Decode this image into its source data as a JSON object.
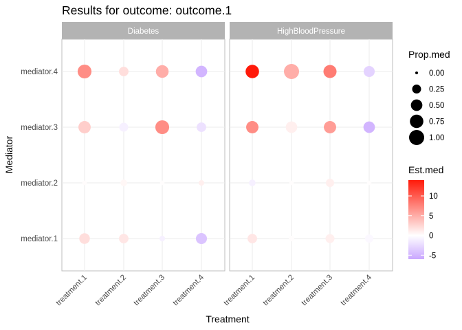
{
  "chart_data": {
    "type": "scatter",
    "title": "Results for outcome: outcome.1",
    "xlabel": "Treatment",
    "ylabel": "Mediator",
    "facets": [
      "Diabetes",
      "HighBloodPressure"
    ],
    "x_categories": [
      "treatment.1",
      "treatment.2",
      "treatment.3",
      "treatment.4"
    ],
    "y_categories": [
      "mediator.1",
      "mediator.2",
      "mediator.3",
      "mediator.4"
    ],
    "grid": true,
    "size_legend": {
      "title": "Prop.med",
      "breaks": [
        0.0,
        0.25,
        0.5,
        0.75,
        1.0
      ],
      "labels": [
        "0.00",
        "0.25",
        "0.50",
        "0.75",
        "1.00"
      ]
    },
    "color_legend": {
      "title": "Est.med",
      "limits": [
        -6,
        14
      ],
      "breaks": [
        10,
        5,
        0,
        -5
      ],
      "labels": [
        "10",
        "5",
        "0",
        "-5"
      ],
      "low_color": "#c9a6ff",
      "mid_color": "#ffffff",
      "high_color": "#ff1a0a"
    },
    "points": [
      {
        "facet": "Diabetes",
        "x": "treatment.1",
        "y": "mediator.4",
        "prop": 0.8,
        "est": 7
      },
      {
        "facet": "Diabetes",
        "x": "treatment.2",
        "y": "mediator.4",
        "prop": 0.3,
        "est": 2
      },
      {
        "facet": "Diabetes",
        "x": "treatment.3",
        "y": "mediator.4",
        "prop": 0.65,
        "est": 5
      },
      {
        "facet": "Diabetes",
        "x": "treatment.4",
        "y": "mediator.4",
        "prop": 0.5,
        "est": -5
      },
      {
        "facet": "Diabetes",
        "x": "treatment.1",
        "y": "mediator.3",
        "prop": 0.6,
        "est": 3
      },
      {
        "facet": "Diabetes",
        "x": "treatment.2",
        "y": "mediator.3",
        "prop": 0.25,
        "est": -1
      },
      {
        "facet": "Diabetes",
        "x": "treatment.3",
        "y": "mediator.3",
        "prop": 0.8,
        "est": 7
      },
      {
        "facet": "Diabetes",
        "x": "treatment.4",
        "y": "mediator.3",
        "prop": 0.3,
        "est": -2
      },
      {
        "facet": "Diabetes",
        "x": "treatment.1",
        "y": "mediator.2",
        "prop": 0.02,
        "est": 0.2
      },
      {
        "facet": "Diabetes",
        "x": "treatment.2",
        "y": "mediator.2",
        "prop": 0.1,
        "est": 0.5
      },
      {
        "facet": "Diabetes",
        "x": "treatment.3",
        "y": "mediator.2",
        "prop": 0.02,
        "est": 0.1
      },
      {
        "facet": "Diabetes",
        "x": "treatment.4",
        "y": "mediator.2",
        "prop": 0.05,
        "est": 1
      },
      {
        "facet": "Diabetes",
        "x": "treatment.1",
        "y": "mediator.1",
        "prop": 0.4,
        "est": 2
      },
      {
        "facet": "Diabetes",
        "x": "treatment.2",
        "y": "mediator.1",
        "prop": 0.3,
        "est": 1.5
      },
      {
        "facet": "Diabetes",
        "x": "treatment.3",
        "y": "mediator.1",
        "prop": 0.05,
        "est": -1
      },
      {
        "facet": "Diabetes",
        "x": "treatment.4",
        "y": "mediator.1",
        "prop": 0.45,
        "est": -4
      },
      {
        "facet": "HighBloodPressure",
        "x": "treatment.1",
        "y": "mediator.4",
        "prop": 0.75,
        "est": 14
      },
      {
        "facet": "HighBloodPressure",
        "x": "treatment.2",
        "y": "mediator.4",
        "prop": 1.0,
        "est": 5
      },
      {
        "facet": "HighBloodPressure",
        "x": "treatment.3",
        "y": "mediator.4",
        "prop": 0.7,
        "est": 8
      },
      {
        "facet": "HighBloodPressure",
        "x": "treatment.4",
        "y": "mediator.4",
        "prop": 0.45,
        "est": -3
      },
      {
        "facet": "HighBloodPressure",
        "x": "treatment.1",
        "y": "mediator.3",
        "prop": 0.6,
        "est": 7
      },
      {
        "facet": "HighBloodPressure",
        "x": "treatment.2",
        "y": "mediator.3",
        "prop": 0.5,
        "est": 1
      },
      {
        "facet": "HighBloodPressure",
        "x": "treatment.3",
        "y": "mediator.3",
        "prop": 0.6,
        "est": 6
      },
      {
        "facet": "HighBloodPressure",
        "x": "treatment.4",
        "y": "mediator.3",
        "prop": 0.5,
        "est": -5
      },
      {
        "facet": "HighBloodPressure",
        "x": "treatment.1",
        "y": "mediator.2",
        "prop": 0.1,
        "est": -1
      },
      {
        "facet": "HighBloodPressure",
        "x": "treatment.2",
        "y": "mediator.2",
        "prop": 0.02,
        "est": 0.1
      },
      {
        "facet": "HighBloodPressure",
        "x": "treatment.3",
        "y": "mediator.2",
        "prop": 0.2,
        "est": 1
      },
      {
        "facet": "HighBloodPressure",
        "x": "treatment.4",
        "y": "mediator.2",
        "prop": 0.02,
        "est": 0.1
      },
      {
        "facet": "HighBloodPressure",
        "x": "treatment.1",
        "y": "mediator.1",
        "prop": 0.3,
        "est": 1.5
      },
      {
        "facet": "HighBloodPressure",
        "x": "treatment.2",
        "y": "mediator.1",
        "prop": 0.05,
        "est": 0.1
      },
      {
        "facet": "HighBloodPressure",
        "x": "treatment.3",
        "y": "mediator.1",
        "prop": 0.25,
        "est": 1
      },
      {
        "facet": "HighBloodPressure",
        "x": "treatment.4",
        "y": "mediator.1",
        "prop": 0.2,
        "est": -0.5
      }
    ]
  }
}
